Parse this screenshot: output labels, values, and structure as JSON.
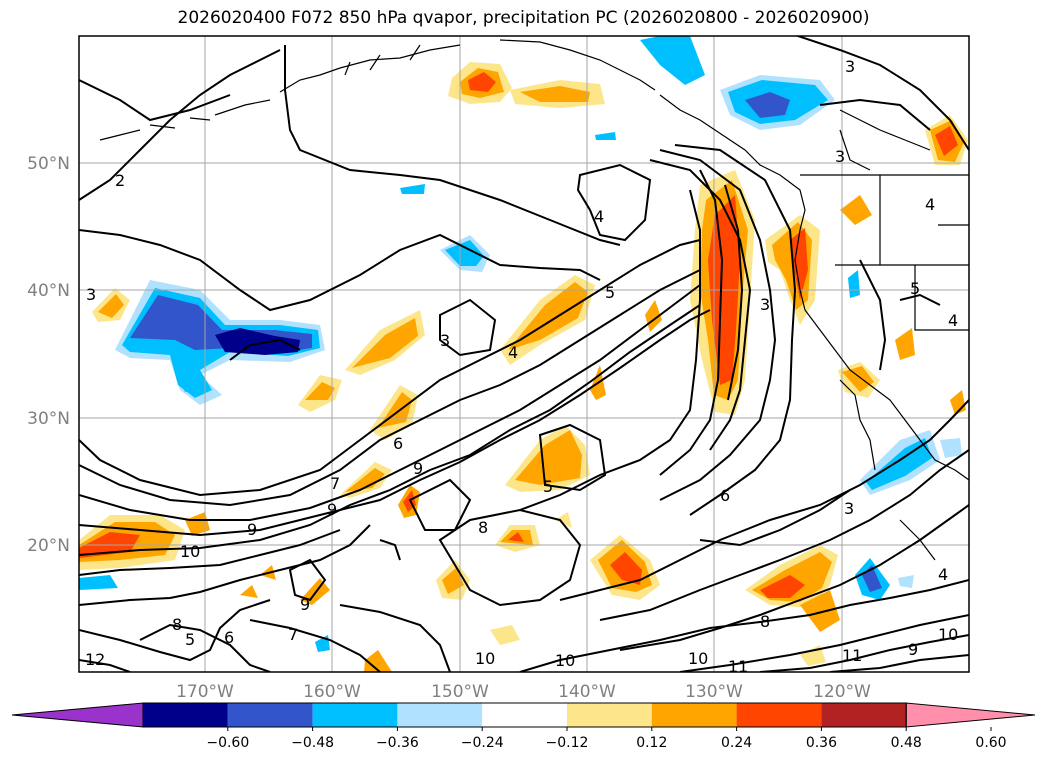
{
  "title": "2026020400 F072 850 hPa qvapor, precipitation PC (2026020800 - 2026020900)",
  "map": {
    "lat_labels": [
      "50°N",
      "40°N",
      "30°N",
      "20°N"
    ],
    "lon_labels": [
      "170°W",
      "160°W",
      "150°W",
      "140°W",
      "130°W",
      "120°W"
    ],
    "contour_labels": [
      "3",
      "2",
      "4",
      "3",
      "3",
      "4",
      "5",
      "3",
      "3",
      "4",
      "5",
      "4",
      "6",
      "9",
      "7",
      "9",
      "10",
      "5",
      "6",
      "8",
      "9",
      "7",
      "6",
      "5",
      "8",
      "9",
      "10",
      "10",
      "8",
      "11",
      "11",
      "10",
      "9",
      "10",
      "4",
      "3",
      "12"
    ]
  },
  "colorbar": {
    "ticks": [
      "−0.60",
      "−0.48",
      "−0.36",
      "−0.24",
      "−0.12",
      "0.12",
      "0.24",
      "0.36",
      "0.48",
      "0.60"
    ],
    "colors": [
      "#9933cc",
      "#00008b",
      "#3355cc",
      "#00bfff",
      "#b0e2ff",
      "#ffffff",
      "#fde68a",
      "#ffa500",
      "#ff4500",
      "#b22222",
      "#ff8fab"
    ]
  }
}
